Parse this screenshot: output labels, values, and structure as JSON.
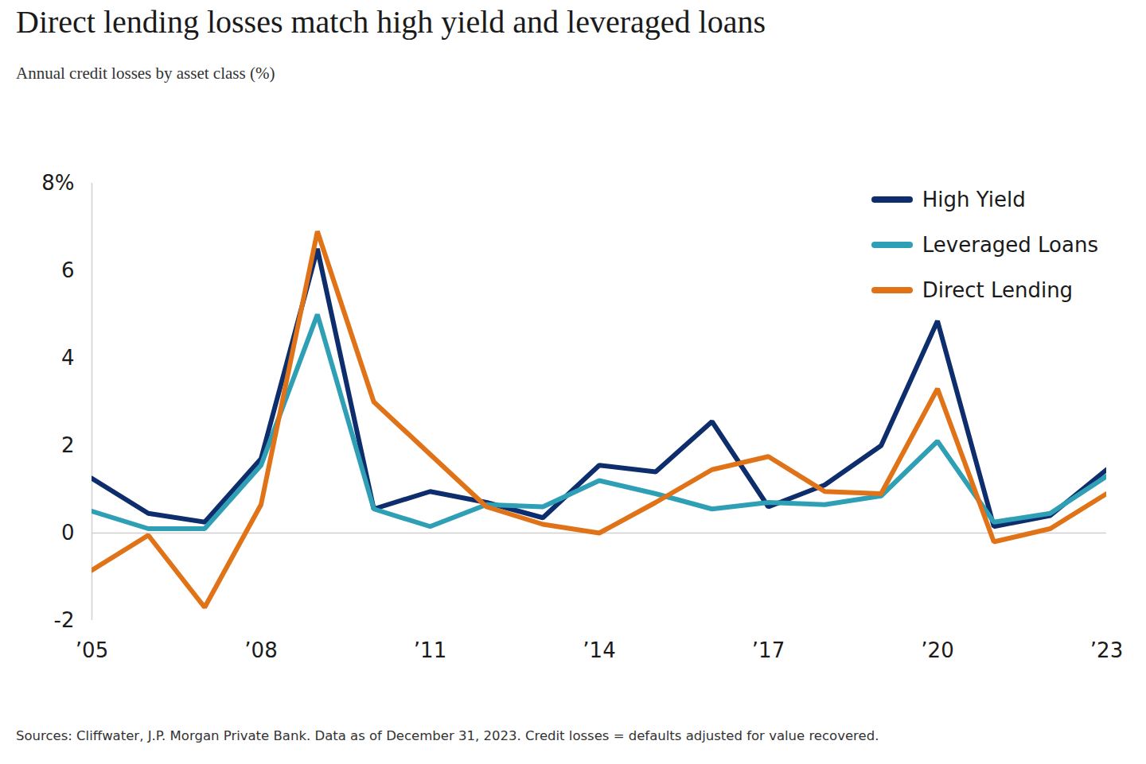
{
  "chart_data": {
    "type": "line",
    "title": "Direct lending losses match high yield and leveraged loans",
    "subtitle": "Annual credit losses by asset class (%)",
    "caption": "Sources: Cliffwater, J.P. Morgan Private Bank. Data as of December 31, 2023. Credit losses = defaults adjusted for value recovered.",
    "x": [
      2005,
      2006,
      2007,
      2008,
      2009,
      2010,
      2011,
      2012,
      2013,
      2014,
      2015,
      2016,
      2017,
      2018,
      2019,
      2020,
      2021,
      2022,
      2023
    ],
    "series": [
      {
        "name": "High Yield",
        "color": "#0d2d6c",
        "values": [
          1.25,
          0.45,
          0.25,
          1.7,
          6.5,
          0.55,
          0.95,
          0.7,
          0.35,
          1.55,
          1.4,
          2.55,
          0.6,
          1.1,
          2.0,
          4.85,
          0.15,
          0.4,
          1.45
        ]
      },
      {
        "name": "Leveraged Loans",
        "color": "#2e9fb5",
        "values": [
          0.5,
          0.1,
          0.1,
          1.55,
          5.0,
          0.55,
          0.15,
          0.65,
          0.6,
          1.2,
          0.9,
          0.55,
          0.7,
          0.65,
          0.85,
          2.1,
          0.25,
          0.45,
          1.3
        ]
      },
      {
        "name": "Direct Lending",
        "color": "#e07318",
        "values": [
          -0.85,
          -0.05,
          -1.7,
          0.65,
          6.9,
          3.0,
          1.8,
          0.6,
          0.2,
          0.0,
          0.7,
          1.45,
          1.75,
          0.95,
          0.9,
          3.3,
          -0.2,
          0.1,
          0.9
        ]
      }
    ],
    "xlim": [
      2005,
      2023
    ],
    "xticks": [
      {
        "value": 2005,
        "label": "’05"
      },
      {
        "value": 2008,
        "label": "’08"
      },
      {
        "value": 2011,
        "label": "’11"
      },
      {
        "value": 2014,
        "label": "’14"
      },
      {
        "value": 2017,
        "label": "’17"
      },
      {
        "value": 2020,
        "label": "’20"
      },
      {
        "value": 2023,
        "label": "’23"
      }
    ],
    "ylim": [
      -2,
      8
    ],
    "yticks": [
      -2,
      0,
      2,
      4,
      6,
      {
        "value": 8,
        "label": "8%"
      }
    ],
    "grid": false,
    "legend": "top-right"
  }
}
